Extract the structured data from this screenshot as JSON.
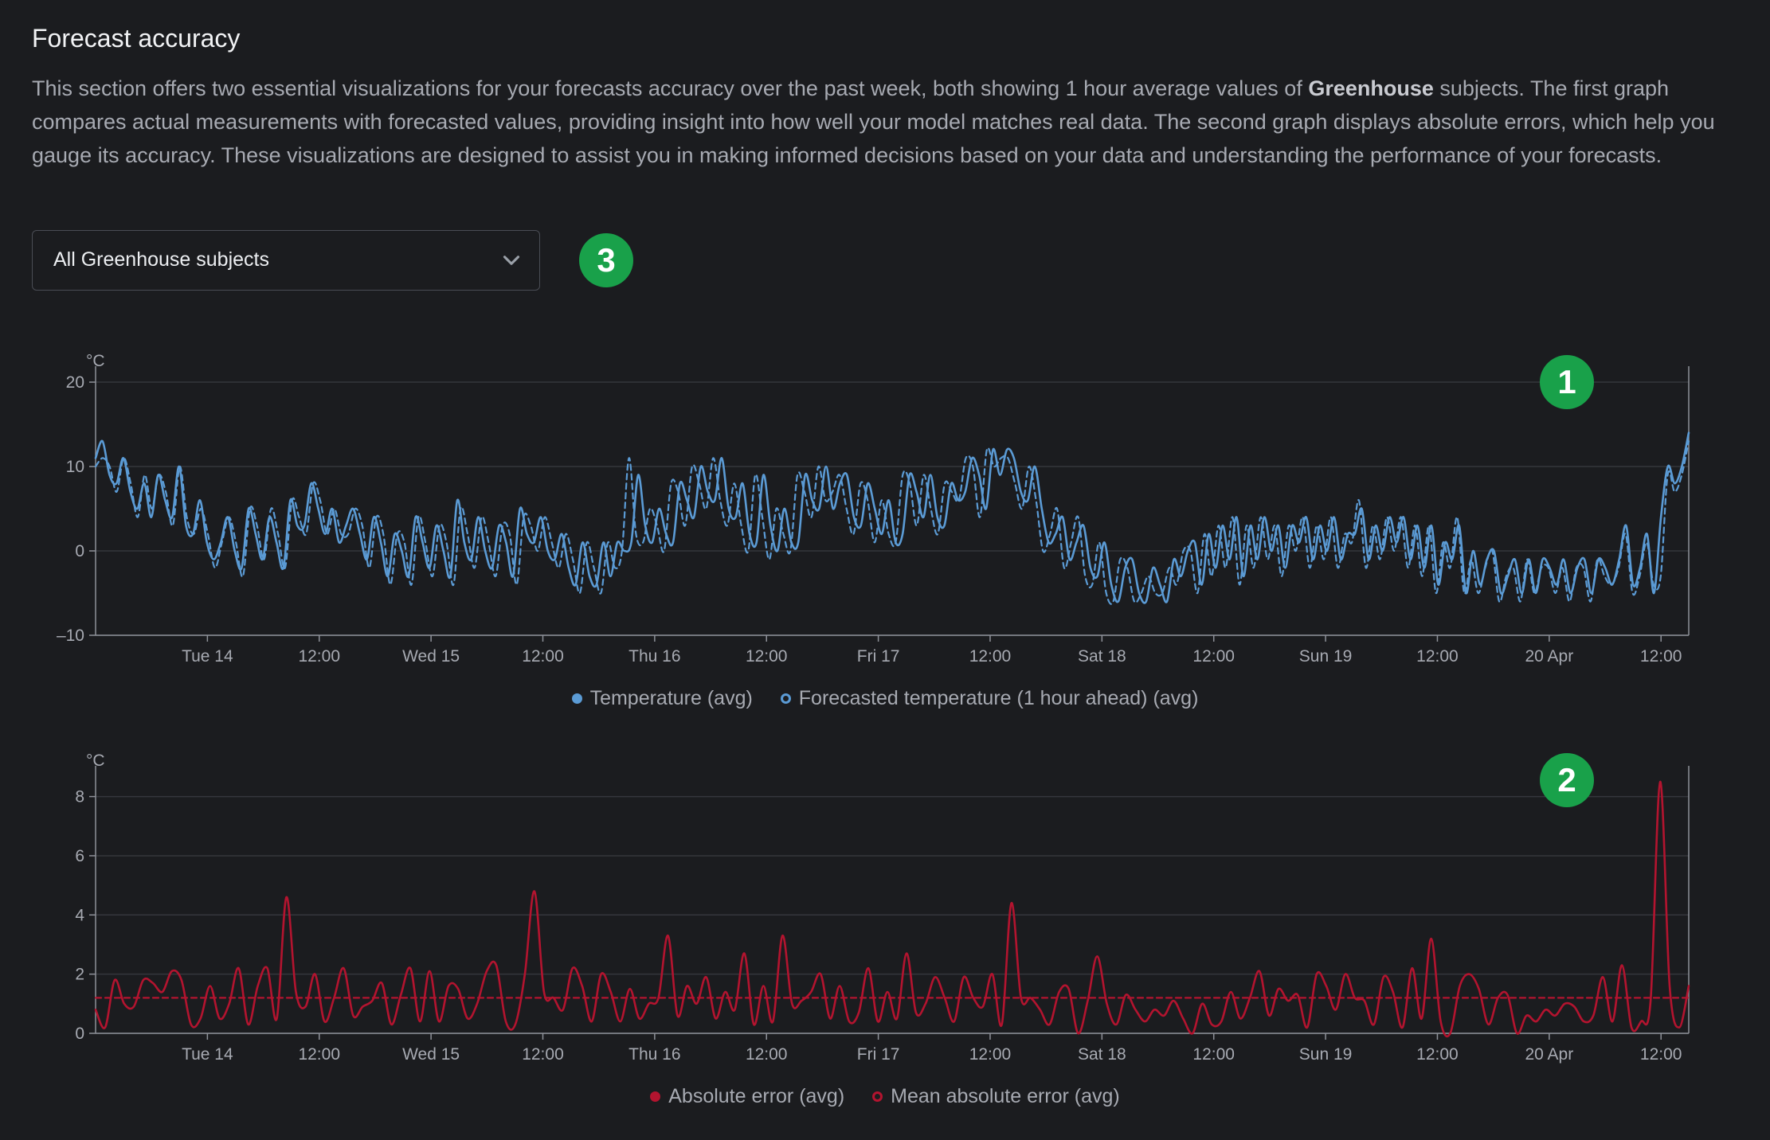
{
  "section": {
    "title": "Forecast accuracy",
    "description_parts": [
      "This section offers two essential visualizations for your forecasts accuracy over the past week, both showing 1 hour average values of ",
      "Greenhouse",
      " subjects. The first graph compares actual measurements with forecasted values, providing insight into how well your model matches real data. The second graph displays absolute errors, which help you gauge its accuracy. These visualizations are designed to assist you in making informed decisions based on your data and understanding the performance of your forecasts."
    ]
  },
  "dropdown": {
    "value": "All Greenhouse subjects",
    "icon": "chevron-down-icon"
  },
  "badges": {
    "chart1": "1",
    "chart2": "2",
    "dropdown": "3",
    "color": "#19a14a"
  },
  "chart_data": [
    {
      "type": "line",
      "ylabel": "°C",
      "ylim": [
        -10,
        20
      ],
      "yticks": [
        20,
        10,
        0,
        -10
      ],
      "ytick_labels": [
        "20",
        "10",
        "0",
        "–10"
      ],
      "xticks": [
        "Tue 14",
        "12:00",
        "Wed 15",
        "12:00",
        "Thu 16",
        "12:00",
        "Fri 17",
        "12:00",
        "Sat 18",
        "12:00",
        "Sun 19",
        "12:00",
        "20 Apr",
        "12:00"
      ],
      "x_start_hours": 0,
      "x_end_hours": 168,
      "grid": true,
      "legend_position": "bottom-center",
      "series": [
        {
          "name": "Temperature (avg)",
          "color": "#5b9bd5",
          "style": "solid",
          "values": [
            11,
            13,
            9,
            8,
            11,
            7,
            5,
            8,
            4,
            9,
            6,
            4,
            10,
            3,
            2,
            6,
            1,
            -1,
            1,
            4,
            0,
            -2,
            5,
            2,
            -1,
            4,
            1,
            -2,
            6,
            3,
            3,
            8,
            5,
            2,
            5,
            1,
            3,
            5,
            2,
            -1,
            4,
            1,
            -3,
            2,
            0,
            -3,
            4,
            1,
            -2,
            3,
            0,
            -3,
            6,
            1,
            -1,
            4,
            0,
            -2,
            3,
            1,
            -3,
            5,
            2,
            1,
            4,
            0,
            -1,
            2,
            -2,
            -4,
            1,
            -3,
            -4,
            1,
            -3,
            1,
            0,
            1,
            9,
            3,
            1,
            5,
            2,
            1,
            8,
            6,
            4,
            10,
            7,
            6,
            11,
            5,
            4,
            8,
            2,
            1,
            9,
            3,
            0,
            5,
            1,
            1,
            9,
            6,
            5,
            10,
            5,
            8,
            9,
            4,
            3,
            8,
            5,
            2,
            6,
            1,
            2,
            9,
            7,
            4,
            9,
            4,
            3,
            8,
            6,
            7,
            11,
            9,
            5,
            12,
            9,
            12,
            11,
            7,
            6,
            10,
            5,
            1,
            2,
            4,
            -1,
            1,
            3,
            -2,
            -3,
            1,
            -4,
            -6,
            -2,
            -1,
            -5,
            -6,
            -2,
            -4,
            -6,
            -1,
            -3,
            0,
            1,
            -4,
            2,
            -2,
            3,
            -1,
            4,
            -3,
            3,
            -1,
            4,
            0,
            3,
            -2,
            3,
            1,
            4,
            -1,
            3,
            0,
            4,
            -1,
            2,
            2,
            5,
            -1,
            3,
            0,
            4,
            1,
            4,
            -1,
            3,
            -2,
            3,
            -4,
            1,
            -1,
            3,
            -5,
            0,
            -4,
            -1,
            0,
            -5,
            -3,
            -1,
            -5,
            -1,
            -5,
            -1,
            -2,
            -4,
            -1,
            -5,
            -2,
            -1,
            -5,
            -1,
            -2,
            -4,
            -1,
            3,
            -4,
            -2,
            2,
            -5,
            4,
            10,
            8,
            10,
            14
          ]
        },
        {
          "name": "Forecasted temperature (1 hour ahead) (avg)",
          "color": "#5b9bd5",
          "style": "dashed",
          "values": [
            10,
            11,
            10,
            7,
            11,
            8,
            4,
            9,
            5,
            9,
            7,
            3,
            10,
            4,
            2,
            5,
            2,
            -2,
            1,
            4,
            1,
            -3,
            5,
            3,
            -1,
            5,
            2,
            -2,
            6,
            4,
            2,
            8,
            6,
            2,
            5,
            2,
            2,
            5,
            3,
            -2,
            4,
            2,
            -4,
            2,
            1,
            -4,
            4,
            1,
            -3,
            3,
            1,
            -4,
            5,
            2,
            -2,
            4,
            1,
            -3,
            3,
            2,
            -4,
            4,
            3,
            0,
            4,
            1,
            -2,
            2,
            -1,
            -5,
            1,
            -2,
            -5,
            1,
            -2,
            0,
            11,
            2,
            1,
            5,
            3,
            0,
            8,
            7,
            3,
            10,
            8,
            5,
            11,
            6,
            3,
            8,
            3,
            0,
            9,
            4,
            -1,
            5,
            2,
            0,
            9,
            7,
            4,
            10,
            6,
            7,
            9,
            5,
            2,
            8,
            6,
            1,
            6,
            2,
            1,
            9,
            8,
            3,
            9,
            5,
            2,
            8,
            7,
            6,
            11,
            10,
            4,
            12,
            10,
            11,
            11,
            8,
            5,
            10,
            6,
            0,
            2,
            5,
            -2,
            1,
            4,
            -3,
            -4,
            1,
            -5,
            -6,
            -1,
            -2,
            -6,
            -5,
            -3,
            -5,
            -5,
            -2,
            -4,
            0,
            0,
            -5,
            2,
            -3,
            3,
            -2,
            4,
            -4,
            3,
            -2,
            4,
            -1,
            3,
            -3,
            3,
            0,
            4,
            -2,
            3,
            -1,
            4,
            -2,
            2,
            1,
            6,
            -2,
            3,
            -1,
            4,
            0,
            4,
            -2,
            3,
            -3,
            3,
            -5,
            1,
            -2,
            4,
            -5,
            -1,
            -5,
            -2,
            0,
            -6,
            -3,
            -2,
            -6,
            -1,
            -5,
            -2,
            -2,
            -5,
            -2,
            -6,
            -2,
            -2,
            -6,
            -1,
            -3,
            -4,
            -2,
            2,
            -5,
            -3,
            1,
            -4,
            -3,
            9,
            7,
            9,
            13
          ]
        }
      ]
    },
    {
      "type": "line",
      "ylabel": "°C",
      "ylim": [
        0,
        8.5
      ],
      "yticks": [
        8,
        6,
        4,
        2,
        0
      ],
      "ytick_labels": [
        "8",
        "6",
        "4",
        "2",
        "0"
      ],
      "xticks": [
        "Tue 14",
        "12:00",
        "Wed 15",
        "12:00",
        "Thu 16",
        "12:00",
        "Fri 17",
        "12:00",
        "Sat 18",
        "12:00",
        "Sun 19",
        "12:00",
        "20 Apr",
        "12:00"
      ],
      "x_start_hours": 0,
      "x_end_hours": 168,
      "grid": true,
      "legend_position": "bottom-center",
      "series": [
        {
          "name": "Absolute error (avg)",
          "color": "#b3142f",
          "style": "solid",
          "values": [
            0.8,
            0.2,
            1.8,
            1.0,
            0.9,
            1.8,
            1.7,
            1.4,
            2.1,
            1.8,
            0.3,
            0.5,
            1.6,
            0.5,
            1.0,
            2.2,
            0.3,
            1.6,
            2.2,
            0.5,
            4.6,
            1.4,
            0.9,
            2.0,
            0.4,
            1.2,
            2.2,
            0.6,
            0.9,
            1.1,
            1.7,
            0.3,
            1.3,
            2.2,
            0.4,
            2.1,
            0.4,
            1.6,
            1.5,
            0.5,
            1.0,
            2.1,
            2.3,
            0.4,
            0.3,
            2.0,
            4.8,
            1.4,
            1.2,
            0.8,
            2.2,
            1.6,
            0.4,
            2.0,
            1.4,
            0.4,
            1.5,
            0.5,
            1.0,
            1.2,
            3.3,
            0.6,
            1.6,
            1.0,
            1.9,
            0.5,
            1.4,
            0.8,
            2.7,
            0.3,
            1.6,
            0.4,
            3.3,
            1.0,
            1.1,
            1.4,
            2.0,
            0.5,
            1.6,
            0.4,
            0.7,
            2.2,
            0.4,
            1.4,
            0.5,
            2.7,
            0.7,
            1.0,
            1.9,
            1.2,
            0.4,
            1.9,
            1.2,
            0.9,
            2.0,
            0.3,
            4.4,
            1.2,
            1.2,
            0.8,
            0.3,
            1.4,
            1.5,
            0.0,
            1.1,
            2.6,
            1.0,
            0.3,
            1.3,
            0.8,
            0.4,
            0.8,
            0.6,
            1.1,
            0.5,
            0.0,
            1.0,
            0.3,
            0.4,
            1.4,
            0.5,
            1.2,
            2.1,
            0.6,
            1.5,
            1.1,
            1.3,
            0.2,
            2.0,
            1.6,
            0.8,
            2.0,
            1.2,
            1.1,
            0.3,
            1.9,
            1.4,
            0.2,
            2.2,
            0.5,
            3.2,
            0.4,
            0.0,
            1.6,
            2.0,
            1.5,
            0.3,
            1.2,
            1.3,
            0.0,
            0.6,
            0.4,
            0.8,
            0.6,
            1.0,
            0.9,
            0.4,
            0.6,
            1.9,
            0.4,
            2.3,
            0.2,
            0.4,
            1.1,
            8.5,
            1.6,
            0.2,
            1.6
          ]
        },
        {
          "name": "Mean absolute error (avg)",
          "color": "#b3142f",
          "style": "dashed",
          "values": [
            1.2,
            1.2
          ]
        }
      ]
    }
  ]
}
